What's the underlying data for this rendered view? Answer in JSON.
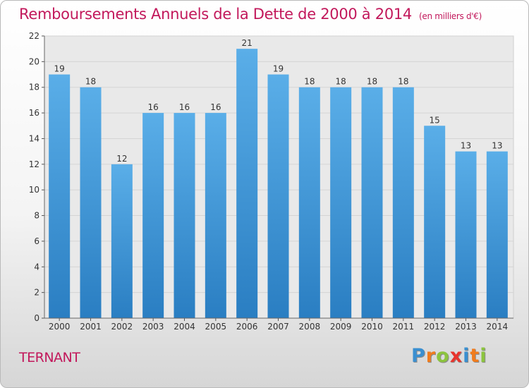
{
  "chart_data": {
    "type": "bar",
    "title": "Remboursements Annuels de la Dette de 2000 à 2014",
    "unit": "(en milliers d'€)",
    "categories": [
      "2000",
      "2001",
      "2002",
      "2003",
      "2004",
      "2005",
      "2006",
      "2007",
      "2008",
      "2009",
      "2010",
      "2011",
      "2012",
      "2013",
      "2014"
    ],
    "values": [
      19,
      18,
      12,
      16,
      16,
      16,
      21,
      19,
      18,
      18,
      18,
      18,
      15,
      13,
      13
    ],
    "ylim": [
      0,
      22
    ],
    "yticks": [
      0,
      2,
      4,
      6,
      8,
      10,
      12,
      14,
      16,
      18,
      20,
      22
    ],
    "grid": true,
    "bar_color_top": "#5aaee8",
    "bar_color_bottom": "#2a7ec2"
  },
  "footer": {
    "commune": "TERNANT",
    "brand": [
      "P",
      "r",
      "o",
      "x",
      "i",
      "t",
      "i"
    ],
    "brand_colors": [
      "#3a8fd0",
      "#f07c1e",
      "#8cc43e",
      "#e8342c",
      "#3a8fd0",
      "#f07c1e",
      "#8cc43e"
    ]
  }
}
